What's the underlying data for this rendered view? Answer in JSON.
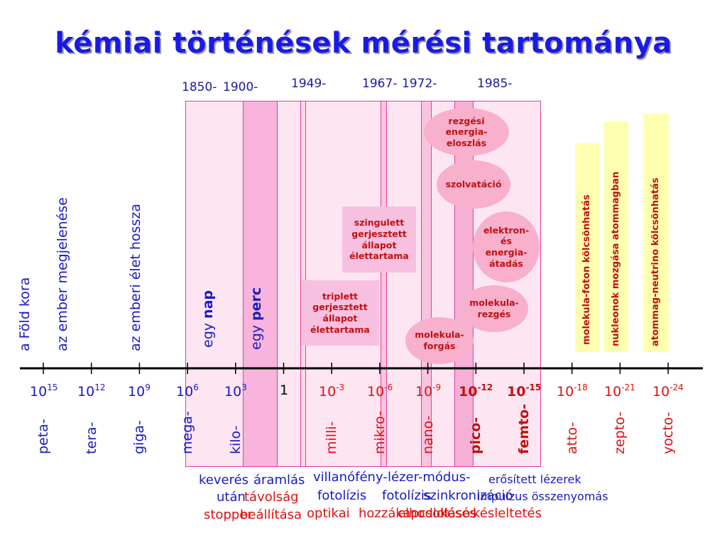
{
  "title": "kémiai történések mérési tartománya",
  "years": [
    "1850-",
    "1900-",
    "1949-",
    "1967-",
    "1972-",
    "1985-"
  ],
  "left_labels": [
    "a Föld kora",
    "az ember megjelenése",
    "az emberi élet hossza"
  ],
  "day_label": {
    "pre": "egy ",
    "bold": "nap"
  },
  "minute_label": {
    "pre": "egy ",
    "bold": "perc"
  },
  "boxes": {
    "singlet": "szingulett\ngerjesztett\nállapot\nélettartama",
    "triplet": "triplett\ngerjesztett\nállapot\nélettartama"
  },
  "bubbles": {
    "vibenergy": "rezgési\nenergia-\neloszlás",
    "solvation": "szolvatáció",
    "electron": "elektron-\nés\nenergia-\nátadás",
    "molvib": "molekula-\nrezgés",
    "molrot": "molekula-\nforgás"
  },
  "interactions": [
    "molekula-foton kölcsönhatás",
    "nukleonok mozgása atommagban",
    "atommag-neutrino kölcsönhatás"
  ],
  "scale": [
    {
      "base": "10",
      "exp": "15",
      "prefix": "peta-",
      "color": "#1a1ac0",
      "bold": false
    },
    {
      "base": "10",
      "exp": "12",
      "prefix": "tera-",
      "color": "#1a1ac0",
      "bold": false
    },
    {
      "base": "10",
      "exp": "9",
      "prefix": "giga-",
      "color": "#1a1ac0",
      "bold": false
    },
    {
      "base": "10",
      "exp": "6",
      "prefix": "mega-",
      "color": "#1a1ac0",
      "bold": false
    },
    {
      "base": "10",
      "exp": "3",
      "prefix": "kilo-",
      "color": "#1a1ac0",
      "bold": false
    },
    {
      "base": "1",
      "exp": "",
      "prefix": "",
      "color": "#000000",
      "bold": false
    },
    {
      "base": "10",
      "exp": "-3",
      "prefix": "milli-",
      "color": "#e01010",
      "bold": false
    },
    {
      "base": "10",
      "exp": "-6",
      "prefix": "mikro-",
      "color": "#e01010",
      "bold": false
    },
    {
      "base": "10",
      "exp": "-9",
      "prefix": "nano-",
      "color": "#e01010",
      "bold": false
    },
    {
      "base": "10",
      "exp": "-12",
      "prefix": "pico-",
      "color": "#c01010",
      "bold": true
    },
    {
      "base": "10",
      "exp": "-15",
      "prefix": "femto-",
      "color": "#c01010",
      "bold": true
    },
    {
      "base": "10",
      "exp": "-18",
      "prefix": "atto-",
      "color": "#e01010",
      "bold": false
    },
    {
      "base": "10",
      "exp": "-21",
      "prefix": "zepto-",
      "color": "#e01010",
      "bold": false
    },
    {
      "base": "10",
      "exp": "-24",
      "prefix": "yocto-",
      "color": "#e01010",
      "bold": false
    }
  ],
  "bottom": {
    "keveres": "keverés",
    "utan": "után",
    "stopper": "stopper",
    "aramlas": "áramlás",
    "tavolsag": "távolság",
    "beallitasa": "beállítása",
    "villanofeny": "villanófény-",
    "fotolizis1": "fotolízis",
    "optikai": "optikai",
    "lezermodus": "lézer-módus-",
    "fotolizis2": "fotolízis",
    "szinkronizacio": "szinkronizáció",
    "hozzakapcsolt": "hozzákapcsolt",
    "elhodlolasos": "elhodlolásos",
    "keses": "késés",
    "kesleltetes": "késleltetés",
    "erositett": "erősített lézerek",
    "impulzus": "impulzus összenyomás"
  },
  "colors": {
    "title": "#1a1ae6",
    "blue": "#1a1ac0",
    "red": "#e01010",
    "band_border": "#e0409a",
    "band_fill": "#fbd8ec"
  }
}
